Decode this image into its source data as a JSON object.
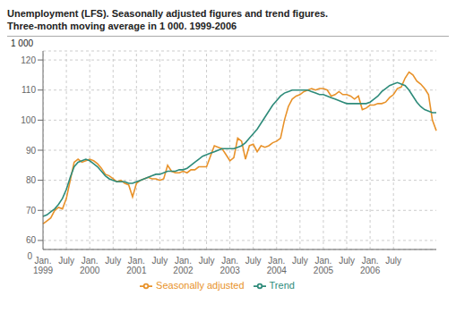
{
  "chart_data": {
    "type": "line",
    "title": "Unemployment (LFS). Seasonally adjusted figures and trend figures.",
    "subtitle": "Three-month moving average in 1 000. 1999-2006",
    "y_label": "1 000",
    "annotations": [
      "0"
    ],
    "categories": [
      "Jan.\n1999",
      null,
      null,
      null,
      null,
      null,
      "July",
      null,
      null,
      null,
      null,
      null,
      "Jan.\n2000",
      null,
      null,
      null,
      null,
      null,
      "July",
      null,
      null,
      null,
      null,
      null,
      "Jan.\n2001",
      null,
      null,
      null,
      null,
      null,
      "July",
      null,
      null,
      null,
      null,
      null,
      "Jan.\n2002",
      null,
      null,
      null,
      null,
      null,
      "July",
      null,
      null,
      null,
      null,
      null,
      "Jan.\n2003",
      null,
      null,
      null,
      null,
      null,
      "July",
      null,
      null,
      null,
      null,
      null,
      "Jan.\n2004",
      null,
      null,
      null,
      null,
      null,
      "July",
      null,
      null,
      null,
      null,
      null,
      "Jan.\n2005",
      null,
      null,
      null,
      null,
      null,
      "July",
      null,
      null,
      null,
      null,
      null,
      "Jan.\n2006",
      null,
      null,
      null,
      null,
      null,
      "July",
      null,
      null,
      null,
      null,
      null,
      null,
      null,
      null,
      null,
      null,
      null
    ],
    "series": [
      {
        "name": "Seasonally adjusted",
        "color": "#e8922a",
        "values": [
          65.5,
          66.5,
          67.5,
          70.0,
          71.0,
          70.5,
          74.0,
          80.0,
          86.0,
          87.0,
          86.0,
          86.5,
          87.0,
          86.5,
          85.5,
          84.0,
          82.0,
          81.5,
          80.5,
          79.5,
          80.0,
          79.0,
          78.5,
          74.5,
          79.0,
          80.0,
          80.5,
          81.0,
          80.5,
          80.5,
          80.0,
          80.5,
          85.0,
          83.0,
          82.5,
          82.5,
          83.0,
          82.5,
          83.5,
          83.5,
          84.5,
          84.5,
          84.5,
          88.0,
          91.5,
          91.0,
          90.5,
          88.5,
          86.5,
          87.5,
          94.0,
          93.0,
          87.0,
          91.5,
          92.0,
          89.5,
          91.5,
          91.0,
          91.5,
          92.5,
          93.0,
          94.0,
          100.0,
          104.5,
          107.0,
          108.0,
          108.5,
          109.5,
          110.0,
          110.5,
          110.0,
          110.5,
          110.5,
          110.0,
          108.0,
          108.5,
          109.5,
          108.5,
          108.5,
          108.0,
          107.0,
          108.0,
          103.5,
          104.0,
          105.0,
          105.0,
          105.5,
          105.5,
          106.0,
          107.5,
          108.5,
          110.5,
          111.0,
          114.0,
          116.0,
          115.0,
          113.0,
          112.0,
          110.5,
          108.5,
          100.0,
          96.5
        ]
      },
      {
        "name": "Trend",
        "color": "#2e8b7a",
        "values": [
          68.0,
          68.5,
          69.5,
          70.5,
          72.0,
          74.0,
          77.0,
          81.0,
          84.5,
          86.0,
          86.5,
          87.0,
          86.5,
          85.5,
          84.5,
          83.0,
          81.5,
          80.5,
          80.0,
          79.5,
          79.5,
          79.5,
          79.0,
          79.0,
          79.5,
          80.0,
          80.5,
          81.0,
          81.5,
          82.0,
          82.0,
          82.5,
          83.0,
          83.0,
          83.0,
          83.5,
          83.5,
          84.0,
          85.0,
          86.0,
          87.0,
          88.0,
          88.5,
          89.0,
          89.5,
          90.0,
          90.5,
          90.5,
          90.5,
          90.5,
          91.0,
          91.5,
          92.5,
          94.0,
          95.5,
          97.0,
          99.0,
          101.0,
          103.0,
          105.0,
          106.5,
          108.0,
          109.0,
          109.5,
          110.0,
          110.0,
          110.0,
          110.0,
          110.0,
          109.5,
          109.0,
          108.5,
          108.5,
          108.0,
          107.5,
          107.0,
          106.5,
          106.0,
          105.5,
          105.5,
          105.5,
          105.5,
          105.5,
          105.5,
          106.0,
          107.0,
          108.0,
          109.5,
          110.5,
          111.5,
          112.0,
          112.5,
          112.0,
          111.5,
          110.0,
          108.0,
          106.0,
          104.5,
          103.5,
          103.0,
          102.5,
          102.5
        ]
      }
    ],
    "ylim": [
      57,
      123
    ],
    "yticks": [
      60,
      70,
      80,
      90,
      100,
      110,
      120
    ],
    "grid": true,
    "legend": "bottom"
  }
}
